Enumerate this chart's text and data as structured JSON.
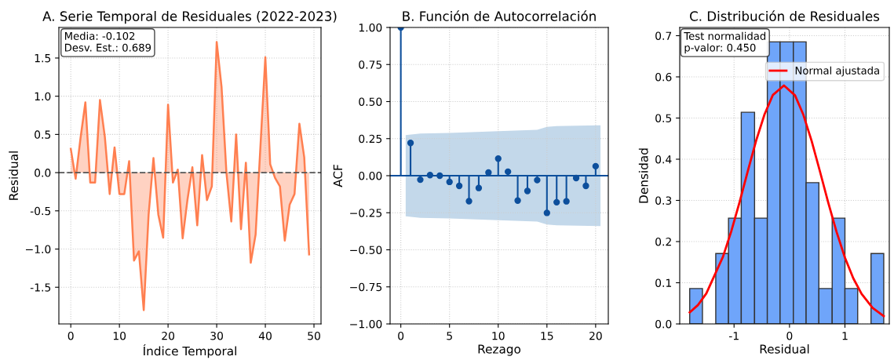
{
  "chart_data": [
    {
      "type": "area",
      "title": "A. Serie Temporal de Residuales (2022-2023)",
      "xlabel": "Índice Temporal",
      "ylabel": "Residual",
      "x": [
        0,
        1,
        2,
        3,
        4,
        5,
        6,
        7,
        8,
        9,
        10,
        11,
        12,
        13,
        14,
        15,
        16,
        17,
        18,
        19,
        20,
        21,
        22,
        23,
        24,
        25,
        26,
        27,
        28,
        29,
        30,
        31,
        32,
        33,
        34,
        35,
        36,
        37,
        38,
        39,
        40,
        41,
        42,
        43,
        44,
        45,
        46,
        47,
        48,
        49
      ],
      "series": [
        {
          "color": "#ff7f50",
          "values": [
            0.31,
            -0.08,
            0.45,
            0.92,
            -0.13,
            -0.13,
            0.95,
            0.47,
            -0.28,
            0.33,
            -0.28,
            -0.28,
            0.15,
            -1.15,
            -1.03,
            -1.8,
            -0.55,
            0.19,
            -0.55,
            -0.85,
            0.89,
            -0.13,
            0.04,
            -0.86,
            -0.35,
            0.07,
            -0.69,
            0.23,
            -0.36,
            -0.18,
            1.71,
            1.12,
            0.0,
            -0.64,
            0.5,
            -0.74,
            0.13,
            -1.18,
            -0.81,
            0.35,
            1.51,
            0.11,
            -0.07,
            -0.18,
            -0.89,
            -0.42,
            -0.28,
            0.64,
            0.2,
            -1.07
          ]
        }
      ],
      "xlim": [
        -2.45,
        51.45
      ],
      "ylim": [
        -1.98,
        1.9
      ],
      "xticks": [
        0,
        10,
        20,
        30,
        40,
        50
      ],
      "yticks": [
        -1.5,
        {
          "value": -1.0,
          "label": "−1.0"
        },
        -0.5,
        {
          "value": 0.0,
          "label": "0.0"
        },
        0.5,
        {
          "value": 1.0,
          "label": "1.0"
        },
        1.5
      ],
      "grid": true,
      "ref_lines": [
        {
          "axis": "y",
          "value": 0,
          "color": "#555555",
          "line_style": "dashed"
        }
      ],
      "annotations": [
        "Media: -0.102\nDesv. Est.: 0.689"
      ]
    },
    {
      "type": "lollipop",
      "title": "B. Función de Autocorrelación",
      "xlabel": "Rezago",
      "ylabel": "ACF",
      "x": [
        0,
        1,
        2,
        3,
        4,
        5,
        6,
        7,
        8,
        9,
        10,
        11,
        12,
        13,
        14,
        15,
        16,
        17,
        18,
        19,
        20
      ],
      "marker": "circle",
      "series": [
        {
          "type": "area",
          "color": "#c3d8ea",
          "x": [
            0.5,
            2,
            5,
            10,
            14,
            15,
            16,
            20.5
          ],
          "values": [
            null,
            null,
            null,
            null,
            null,
            null,
            null,
            null
          ],
          "lower": [
            -0.274,
            -0.285,
            -0.288,
            -0.3,
            -0.31,
            -0.33,
            -0.335,
            -0.34
          ],
          "upper": [
            0.274,
            0.285,
            0.288,
            0.3,
            0.31,
            0.33,
            0.335,
            0.34
          ]
        },
        {
          "type": "lollipop",
          "color": "#0d4f9c",
          "values": [
            1.0,
            0.221,
            -0.027,
            0.004,
            0.0,
            -0.042,
            -0.069,
            -0.172,
            -0.083,
            0.021,
            0.115,
            0.027,
            -0.168,
            -0.103,
            -0.03,
            -0.251,
            -0.179,
            -0.173,
            -0.016,
            -0.069,
            0.064
          ]
        }
      ],
      "ref_lines": [
        {
          "axis": "y",
          "value": 0,
          "color": "#0d4f9c",
          "line_style": "solid"
        }
      ],
      "xlim": [
        -1.1,
        21.3
      ],
      "ylim": [
        -1.0,
        1.0
      ],
      "xticks": [
        0,
        5,
        10,
        15,
        20
      ],
      "yticks": [
        {
          "value": -1.0,
          "label": "−1.00"
        },
        {
          "value": -0.75,
          "label": "−0.75"
        },
        {
          "value": -0.5,
          "label": "−0.50"
        },
        {
          "value": -0.25,
          "label": "−0.25"
        },
        {
          "value": 0.0,
          "label": "0.00"
        },
        {
          "value": 0.25,
          "label": "0.25"
        },
        {
          "value": 0.5,
          "label": "0.50"
        },
        {
          "value": 0.75,
          "label": "0.75"
        },
        {
          "value": 1.0,
          "label": "1.00"
        }
      ],
      "grid": true
    },
    {
      "type": "histogram",
      "title": "C. Distribución de Residuales",
      "xlabel": "Residual",
      "ylabel": "Densidad",
      "bins": [
        -1.8,
        -1.57,
        -1.33,
        -1.1,
        -0.87,
        -0.63,
        -0.4,
        -0.17,
        0.07,
        0.3,
        0.53,
        0.77,
        1.0,
        1.23,
        1.47,
        1.7
      ],
      "values": [
        0.086,
        0,
        0.171,
        0.257,
        0.514,
        0.257,
        0.685,
        0.685,
        0.685,
        0.343,
        0.086,
        0.257,
        0.086,
        0,
        0.171
      ],
      "color": "#6fa5fa",
      "series": [
        {
          "type": "line",
          "name": "Normal ajustada",
          "color": "#ff0000",
          "x": [
            -1.8,
            -1.65,
            -1.5,
            -1.2,
            -1.05,
            -0.9,
            -0.75,
            -0.6,
            -0.45,
            -0.3,
            -0.1,
            0.1,
            0.25,
            0.4,
            0.55,
            0.7,
            0.85,
            1.0,
            1.15,
            1.3,
            1.5,
            1.7
          ],
          "values": [
            0.028,
            0.046,
            0.074,
            0.163,
            0.225,
            0.296,
            0.372,
            0.446,
            0.509,
            0.556,
            0.579,
            0.555,
            0.508,
            0.444,
            0.37,
            0.294,
            0.223,
            0.161,
            0.111,
            0.073,
            0.039,
            0.019
          ]
        }
      ],
      "xlim": [
        -1.98,
        1.8
      ],
      "ylim": [
        0,
        0.72
      ],
      "xticks": [
        -1,
        0,
        1
      ],
      "yticks": [
        {
          "value": 0.0,
          "label": "0.0"
        },
        {
          "value": 0.1,
          "label": "0.1"
        },
        {
          "value": 0.2,
          "label": "0.2"
        },
        {
          "value": 0.3,
          "label": "0.3"
        },
        {
          "value": 0.4,
          "label": "0.4"
        },
        {
          "value": 0.5,
          "label": "0.5"
        },
        {
          "value": 0.6,
          "label": "0.6"
        },
        {
          "value": 0.7,
          "label": "0.7"
        }
      ],
      "grid": true,
      "legend": "top right",
      "annotations": [
        "Test normalidad\np-valor: 0.450"
      ]
    }
  ]
}
